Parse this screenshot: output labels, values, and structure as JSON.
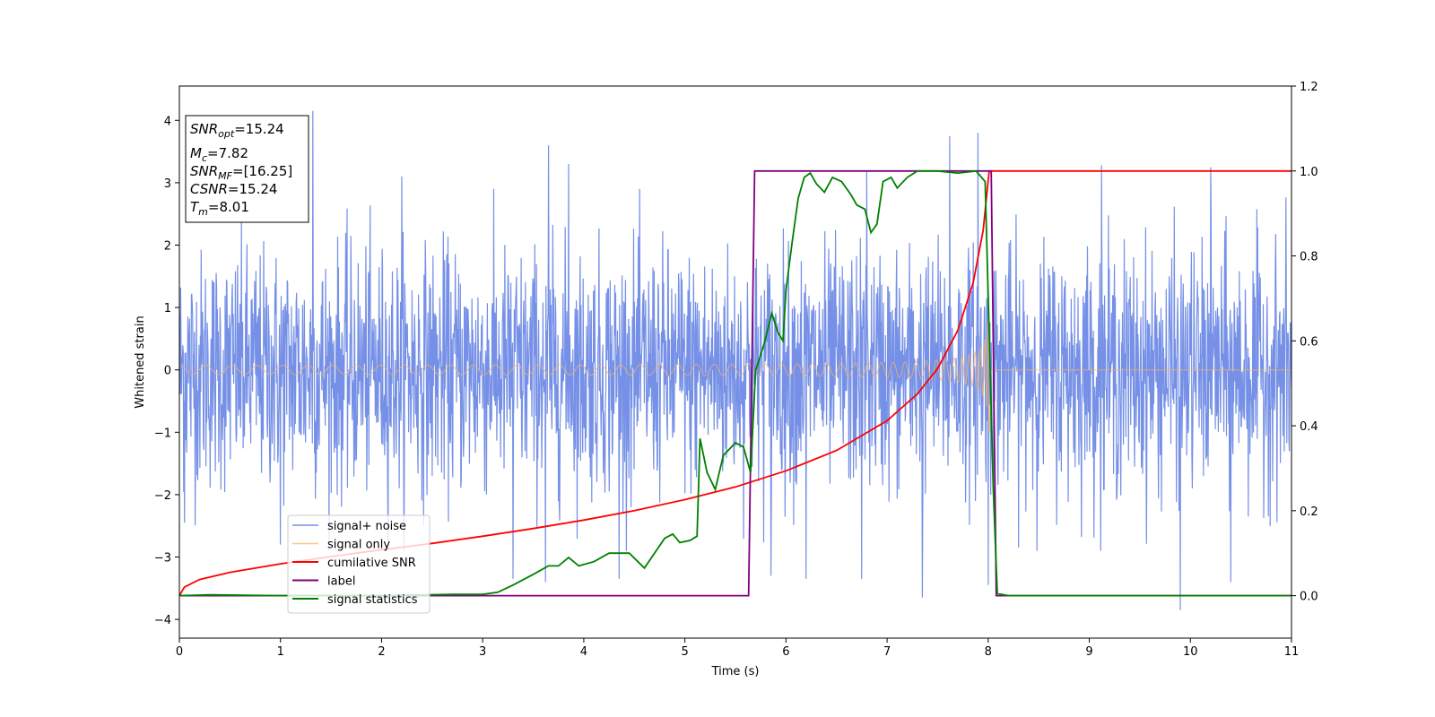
{
  "chart_data": {
    "type": "line",
    "title": "",
    "xlabel": "Time (s)",
    "ylabel": "Whitened strain",
    "y2label": "",
    "xlim": [
      0,
      11
    ],
    "ylim": [
      -4.3,
      4.55
    ],
    "y2lim": [
      -0.1,
      1.2
    ],
    "x_ticks": [
      0,
      1,
      2,
      3,
      4,
      5,
      6,
      7,
      8,
      9,
      10,
      11
    ],
    "y_ticks": [
      -4,
      -3,
      -2,
      -1,
      0,
      1,
      2,
      3,
      4
    ],
    "y2_ticks": [
      "0.0",
      "0.2",
      "0.4",
      "0.6",
      "0.8",
      "1.0",
      "1.2"
    ],
    "legend_position": "lower-left",
    "grid": false,
    "annotation": {
      "lines": [
        {
          "sym": "SNR",
          "sub": "opt",
          "value": "=15.24"
        },
        {
          "sym": "M",
          "sub": "c",
          "value": "=7.82"
        },
        {
          "sym": "SNR",
          "sub": "MF",
          "value": "=[16.25]"
        },
        {
          "sym": "CSNR",
          "sub": "",
          "value": "=15.24"
        },
        {
          "sym": "T",
          "sub": "m",
          "value": "=8.01"
        }
      ]
    },
    "series": [
      {
        "name": "signal+ noise",
        "axis": "left",
        "color": "#7590e6",
        "kind": "noise",
        "std": 0.95,
        "extremes": [
          [
            1.32,
            4.15
          ],
          [
            3.65,
            3.6
          ],
          [
            3.85,
            3.3
          ],
          [
            7.62,
            3.75
          ],
          [
            7.9,
            3.8
          ],
          [
            8.0,
            3.9
          ],
          [
            9.12,
            3.28
          ],
          [
            10.2,
            3.25
          ],
          [
            2.2,
            3.1
          ],
          [
            6.8,
            3.2
          ],
          [
            3.3,
            -3.35
          ],
          [
            3.62,
            -3.4
          ],
          [
            4.35,
            -3.35
          ],
          [
            5.85,
            -3.3
          ],
          [
            6.2,
            -3.35
          ],
          [
            6.75,
            -3.35
          ],
          [
            7.35,
            -3.65
          ],
          [
            8.0,
            -3.45
          ],
          [
            9.9,
            -3.85
          ],
          [
            10.4,
            -3.4
          ],
          [
            0.05,
            -2.45
          ],
          [
            1.0,
            -2.8
          ]
        ]
      },
      {
        "name": "signal only",
        "axis": "left",
        "color": "#f5b46a",
        "kind": "chirp",
        "merger_time": 8.01,
        "amplitude_start": 0.07,
        "amplitude_peak": 1.05
      },
      {
        "name": "cumilative SNR",
        "axis": "right",
        "color": "#ff0000",
        "points": [
          [
            0,
            0.0
          ],
          [
            0.05,
            0.02
          ],
          [
            0.2,
            0.038
          ],
          [
            0.5,
            0.055
          ],
          [
            1,
            0.075
          ],
          [
            1.5,
            0.092
          ],
          [
            2,
            0.108
          ],
          [
            2.5,
            0.123
          ],
          [
            3,
            0.14
          ],
          [
            3.5,
            0.158
          ],
          [
            4,
            0.178
          ],
          [
            4.5,
            0.2
          ],
          [
            5,
            0.226
          ],
          [
            5.5,
            0.256
          ],
          [
            6,
            0.294
          ],
          [
            6.5,
            0.342
          ],
          [
            7,
            0.412
          ],
          [
            7.3,
            0.475
          ],
          [
            7.5,
            0.535
          ],
          [
            7.7,
            0.625
          ],
          [
            7.85,
            0.735
          ],
          [
            7.95,
            0.86
          ],
          [
            8.01,
            1.0
          ],
          [
            11,
            1.0
          ]
        ]
      },
      {
        "name": "label",
        "axis": "right",
        "color": "#800080",
        "points": [
          [
            0,
            0.0
          ],
          [
            5.63,
            0.0
          ],
          [
            5.69,
            1.0
          ],
          [
            8.03,
            1.0
          ],
          [
            8.08,
            0.0
          ],
          [
            11,
            0.0
          ]
        ]
      },
      {
        "name": "signal statistics",
        "axis": "right",
        "color": "#008000",
        "points": [
          [
            0,
            0.0
          ],
          [
            0.3,
            0.002
          ],
          [
            1,
            0.0
          ],
          [
            2,
            0.0
          ],
          [
            2.7,
            0.003
          ],
          [
            3.0,
            0.003
          ],
          [
            3.15,
            0.008
          ],
          [
            3.3,
            0.025
          ],
          [
            3.5,
            0.05
          ],
          [
            3.65,
            0.07
          ],
          [
            3.75,
            0.07
          ],
          [
            3.85,
            0.09
          ],
          [
            3.95,
            0.07
          ],
          [
            4.1,
            0.08
          ],
          [
            4.25,
            0.1
          ],
          [
            4.45,
            0.1
          ],
          [
            4.6,
            0.065
          ],
          [
            4.7,
            0.1
          ],
          [
            4.8,
            0.135
          ],
          [
            4.88,
            0.145
          ],
          [
            4.95,
            0.125
          ],
          [
            5.05,
            0.13
          ],
          [
            5.12,
            0.14
          ],
          [
            5.15,
            0.37
          ],
          [
            5.22,
            0.29
          ],
          [
            5.3,
            0.25
          ],
          [
            5.38,
            0.33
          ],
          [
            5.5,
            0.36
          ],
          [
            5.58,
            0.35
          ],
          [
            5.65,
            0.29
          ],
          [
            5.7,
            0.53
          ],
          [
            5.78,
            0.59
          ],
          [
            5.86,
            0.665
          ],
          [
            5.92,
            0.62
          ],
          [
            5.97,
            0.6
          ],
          [
            6.0,
            0.72
          ],
          [
            6.06,
            0.83
          ],
          [
            6.12,
            0.935
          ],
          [
            6.18,
            0.985
          ],
          [
            6.24,
            0.995
          ],
          [
            6.3,
            0.97
          ],
          [
            6.38,
            0.95
          ],
          [
            6.46,
            0.985
          ],
          [
            6.55,
            0.975
          ],
          [
            6.64,
            0.945
          ],
          [
            6.7,
            0.92
          ],
          [
            6.78,
            0.91
          ],
          [
            6.84,
            0.855
          ],
          [
            6.9,
            0.875
          ],
          [
            6.96,
            0.975
          ],
          [
            7.04,
            0.985
          ],
          [
            7.1,
            0.96
          ],
          [
            7.2,
            0.985
          ],
          [
            7.3,
            1.0
          ],
          [
            7.5,
            1.0
          ],
          [
            7.7,
            0.995
          ],
          [
            7.88,
            1.0
          ],
          [
            7.97,
            0.975
          ],
          [
            8.01,
            0.62
          ],
          [
            8.05,
            0.25
          ],
          [
            8.09,
            0.005
          ],
          [
            8.2,
            0.0
          ],
          [
            11,
            0.0
          ]
        ]
      }
    ]
  }
}
